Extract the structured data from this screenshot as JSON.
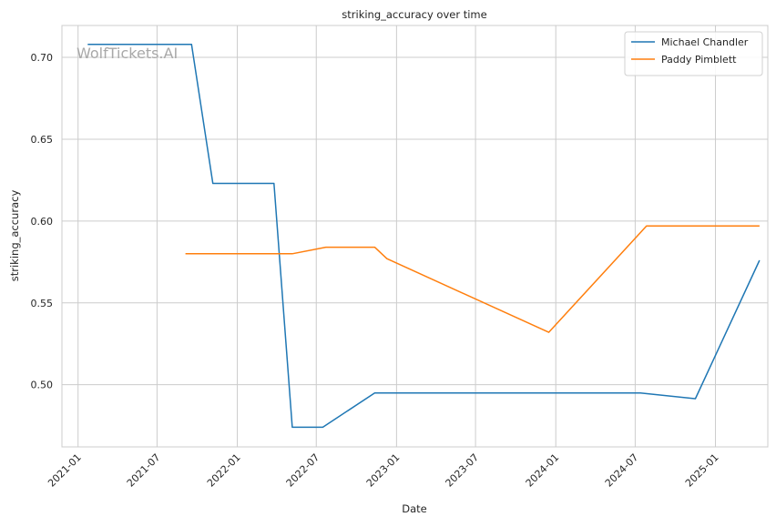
{
  "chart_data": {
    "type": "line",
    "title": "striking_accuracy over time",
    "xlabel": "Date",
    "ylabel": "striking_accuracy",
    "watermark": "WolfTickets.AI",
    "xlim": [
      "2020-11-25",
      "2025-05-01"
    ],
    "ylim": [
      0.462,
      0.7195
    ],
    "x_ticks": [
      "2021-01-01",
      "2021-07-01",
      "2022-01-01",
      "2022-07-01",
      "2023-01-01",
      "2023-07-01",
      "2024-01-01",
      "2024-07-01",
      "2025-01-01"
    ],
    "x_tick_labels": [
      "2021-01",
      "2021-07",
      "2022-01",
      "2022-07",
      "2023-01",
      "2023-07",
      "2024-01",
      "2024-07",
      "2025-01"
    ],
    "y_ticks": [
      0.5,
      0.55,
      0.6,
      0.65,
      0.7
    ],
    "y_tick_labels": [
      "0.50",
      "0.55",
      "0.60",
      "0.65",
      "0.70"
    ],
    "grid": true,
    "legend_position": "top-right",
    "series": [
      {
        "name": "Michael Chandler",
        "color": "#1f77b4",
        "x": [
          "2021-01-23",
          "2021-09-18",
          "2021-11-06",
          "2022-03-26",
          "2022-05-07",
          "2022-07-16",
          "2022-11-12",
          "2024-07-13",
          "2024-11-16",
          "2025-04-12"
        ],
        "y": [
          0.708,
          0.708,
          0.623,
          0.623,
          0.474,
          0.474,
          0.495,
          0.495,
          0.4915,
          0.576
        ]
      },
      {
        "name": "Paddy Pimblett",
        "color": "#ff7f0e",
        "x": [
          "2021-09-04",
          "2022-05-07",
          "2022-07-23",
          "2022-11-12",
          "2022-12-10",
          "2023-12-16",
          "2024-07-27",
          "2024-12-07",
          "2025-04-12"
        ],
        "y": [
          0.58,
          0.58,
          0.584,
          0.584,
          0.577,
          0.532,
          0.597,
          0.597,
          0.597
        ]
      }
    ]
  }
}
